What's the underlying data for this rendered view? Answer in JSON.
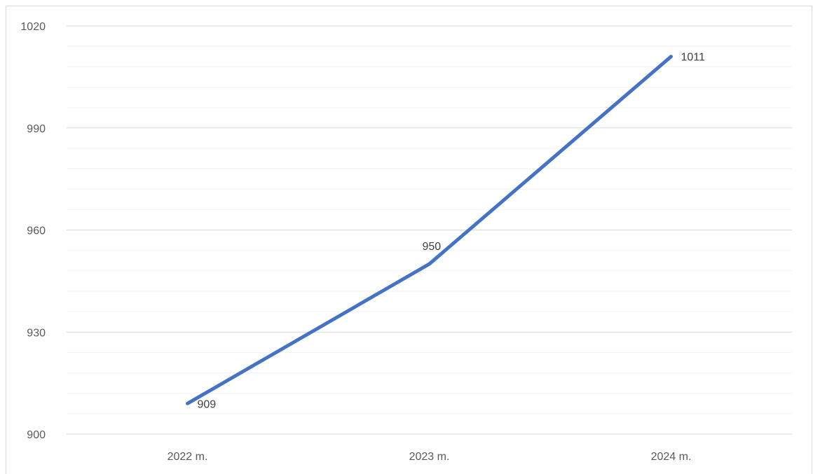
{
  "chart_data": {
    "type": "line",
    "title": "",
    "xlabel": "",
    "ylabel": "",
    "categories": [
      "2022 m.",
      "2023 m.",
      "2024 m."
    ],
    "series": [
      {
        "values": [
          909,
          950,
          1011
        ],
        "color": "#4472c4"
      }
    ],
    "ylim": [
      900,
      1020
    ],
    "y_major_ticks": [
      900,
      930,
      960,
      990,
      1020
    ],
    "y_minor_step": 6,
    "grid": true,
    "legend": "none",
    "gridline_color": "#d9d9d9",
    "minor_gridline_color": "#f2f2f2"
  }
}
